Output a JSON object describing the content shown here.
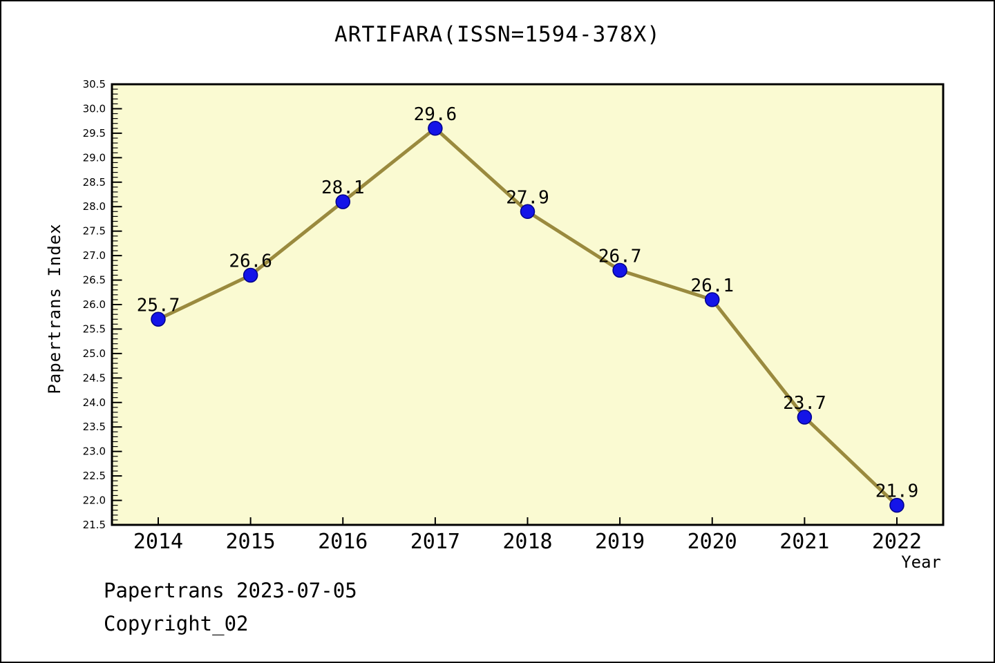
{
  "title": "ARTIFARA(ISSN=1594-378X)",
  "footer": {
    "watermark": "Papertrans 2023-07-05",
    "copyright": "Copyright_02"
  },
  "chart_data": {
    "type": "line",
    "title": "ARTIFARA(ISSN=1594-378X)",
    "xlabel": "Year",
    "ylabel": "Papertrans Index",
    "x": [
      2014,
      2015,
      2016,
      2017,
      2018,
      2019,
      2020,
      2021,
      2022
    ],
    "values": [
      25.7,
      26.6,
      28.1,
      29.6,
      27.9,
      26.7,
      26.1,
      23.7,
      21.9
    ],
    "ylim": [
      21.5,
      30.5
    ],
    "y_major_step": 0.5,
    "y_minor_step": 0.1,
    "grid": false,
    "legend": false,
    "point_labels": true,
    "colors": {
      "line": "#9A8A3E",
      "marker_fill": "#1414E8",
      "marker_edge": "#00008B",
      "plot_bg": "#FAFAD2",
      "axis": "#000000",
      "text": "#000000"
    }
  }
}
